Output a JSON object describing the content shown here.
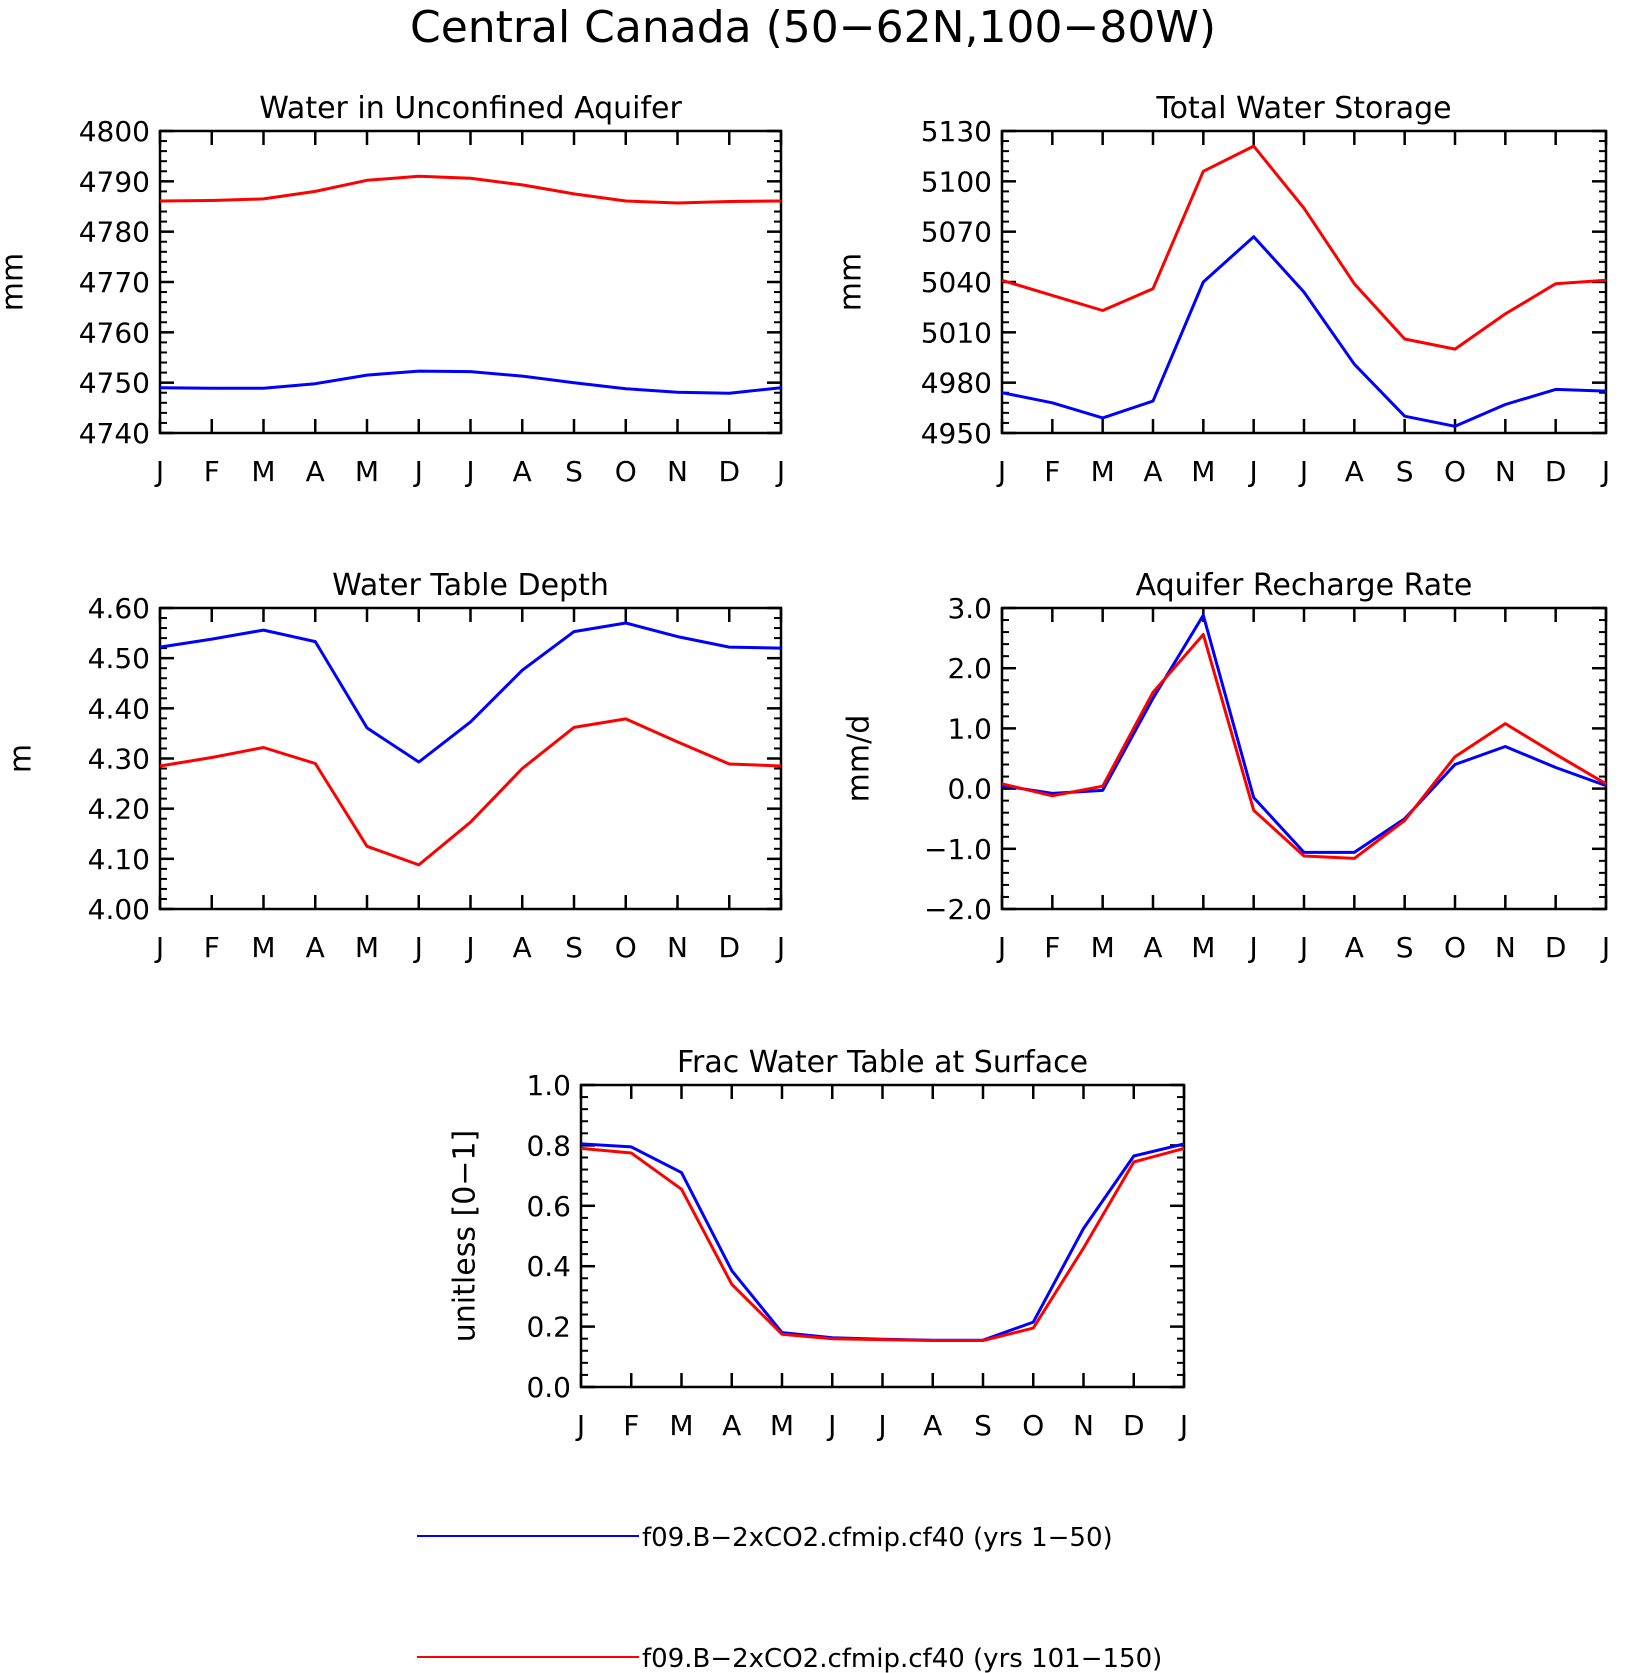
{
  "title": "Central Canada (50−62N,100−80W)",
  "months": [
    "J",
    "F",
    "M",
    "A",
    "M",
    "J",
    "J",
    "A",
    "S",
    "O",
    "N",
    "D",
    "J"
  ],
  "colors": {
    "series1": "#0000ff",
    "series2": "#ff0000"
  },
  "legend": [
    {
      "label": "f09.B−2xCO2.cfmip.cf40 (yrs 1−50)",
      "color": "#0000ff"
    },
    {
      "label": "f09.B−2xCO2.cfmip.cf40 (yrs 101−150)",
      "color": "#ff0000"
    }
  ],
  "chart_data": [
    {
      "type": "line",
      "title": "Water in Unconfined Aquifer",
      "ylabel": "mm",
      "ylim": [
        4740,
        4800
      ],
      "yticks": [
        4740,
        4750,
        4760,
        4770,
        4780,
        4790,
        4800
      ],
      "ytick_labels": [
        "4740",
        "4750",
        "4760",
        "4770",
        "4780",
        "4790",
        "4800"
      ],
      "x": [
        "J",
        "F",
        "M",
        "A",
        "M",
        "J",
        "J",
        "A",
        "S",
        "O",
        "N",
        "D",
        "J"
      ],
      "series": [
        {
          "values": [
            4749.0,
            4748.9,
            4748.9,
            4749.8,
            4751.5,
            4752.3,
            4752.2,
            4751.3,
            4750.0,
            4748.8,
            4748.1,
            4747.9,
            4749.0
          ]
        },
        {
          "values": [
            4786.1,
            4786.2,
            4786.5,
            4788.0,
            4790.2,
            4791.0,
            4790.6,
            4789.3,
            4787.5,
            4786.1,
            4785.7,
            4786.0,
            4786.1
          ]
        }
      ]
    },
    {
      "type": "line",
      "title": "Total Water Storage",
      "ylabel": "mm",
      "ylim": [
        4950,
        5130
      ],
      "yticks": [
        4950,
        4980,
        5010,
        5040,
        5070,
        5100,
        5130
      ],
      "ytick_labels": [
        "4950",
        "4980",
        "5010",
        "5040",
        "5070",
        "5100",
        "5130"
      ],
      "x": [
        "J",
        "F",
        "M",
        "A",
        "M",
        "J",
        "J",
        "A",
        "S",
        "O",
        "N",
        "D",
        "J"
      ],
      "series": [
        {
          "values": [
            4974,
            4968,
            4959,
            4969,
            5040,
            5067,
            5034,
            4991,
            4960,
            4954,
            4967,
            4976,
            4975
          ]
        },
        {
          "values": [
            5041,
            5032,
            5023,
            5036,
            5106,
            5121,
            5084,
            5039,
            5006,
            5000,
            5021,
            5039,
            5041
          ]
        }
      ]
    },
    {
      "type": "line",
      "title": "Water Table Depth",
      "ylabel": "m",
      "ylim": [
        4.0,
        4.6
      ],
      "yticks": [
        4.0,
        4.1,
        4.2,
        4.3,
        4.4,
        4.5,
        4.6
      ],
      "ytick_labels": [
        "4.00",
        "4.10",
        "4.20",
        "4.30",
        "4.40",
        "4.50",
        "4.60"
      ],
      "x": [
        "J",
        "F",
        "M",
        "A",
        "M",
        "J",
        "J",
        "A",
        "S",
        "O",
        "N",
        "D",
        "J"
      ],
      "series": [
        {
          "values": [
            4.522,
            4.538,
            4.556,
            4.533,
            4.361,
            4.293,
            4.373,
            4.476,
            4.553,
            4.57,
            4.543,
            4.522,
            4.52
          ]
        },
        {
          "values": [
            4.285,
            4.302,
            4.322,
            4.29,
            4.125,
            4.088,
            4.173,
            4.28,
            4.362,
            4.379,
            4.333,
            4.289,
            4.285
          ]
        }
      ]
    },
    {
      "type": "line",
      "title": "Aquifer Recharge Rate",
      "ylabel": "mm/d",
      "ylim": [
        -2.0,
        3.0
      ],
      "yticks": [
        -2.0,
        -1.0,
        0.0,
        1.0,
        2.0,
        3.0
      ],
      "ytick_labels": [
        "−2.0",
        "−1.0",
        "0.0",
        "1.0",
        "2.0",
        "3.0"
      ],
      "x": [
        "J",
        "F",
        "M",
        "A",
        "M",
        "J",
        "J",
        "A",
        "S",
        "O",
        "N",
        "D",
        "J"
      ],
      "series": [
        {
          "values": [
            0.05,
            -0.08,
            -0.03,
            1.5,
            2.88,
            -0.15,
            -1.06,
            -1.06,
            -0.5,
            0.4,
            0.7,
            0.35,
            0.05
          ]
        },
        {
          "values": [
            0.08,
            -0.12,
            0.04,
            1.6,
            2.56,
            -0.36,
            -1.12,
            -1.16,
            -0.53,
            0.53,
            1.08,
            0.57,
            0.08
          ]
        }
      ]
    },
    {
      "type": "line",
      "title": "Frac Water Table at Surface",
      "ylabel": "unitless [0−1]",
      "ylim": [
        0.0,
        1.0
      ],
      "yticks": [
        0.0,
        0.2,
        0.4,
        0.6,
        0.8,
        1.0
      ],
      "ytick_labels": [
        "0.0",
        "0.2",
        "0.4",
        "0.6",
        "0.8",
        "1.0"
      ],
      "x": [
        "J",
        "F",
        "M",
        "A",
        "M",
        "J",
        "J",
        "A",
        "S",
        "O",
        "N",
        "D",
        "J"
      ],
      "series": [
        {
          "values": [
            0.805,
            0.795,
            0.71,
            0.385,
            0.18,
            0.163,
            0.158,
            0.155,
            0.155,
            0.215,
            0.525,
            0.765,
            0.805
          ]
        },
        {
          "values": [
            0.79,
            0.775,
            0.655,
            0.34,
            0.175,
            0.16,
            0.157,
            0.154,
            0.154,
            0.195,
            0.46,
            0.745,
            0.79
          ]
        }
      ]
    }
  ]
}
